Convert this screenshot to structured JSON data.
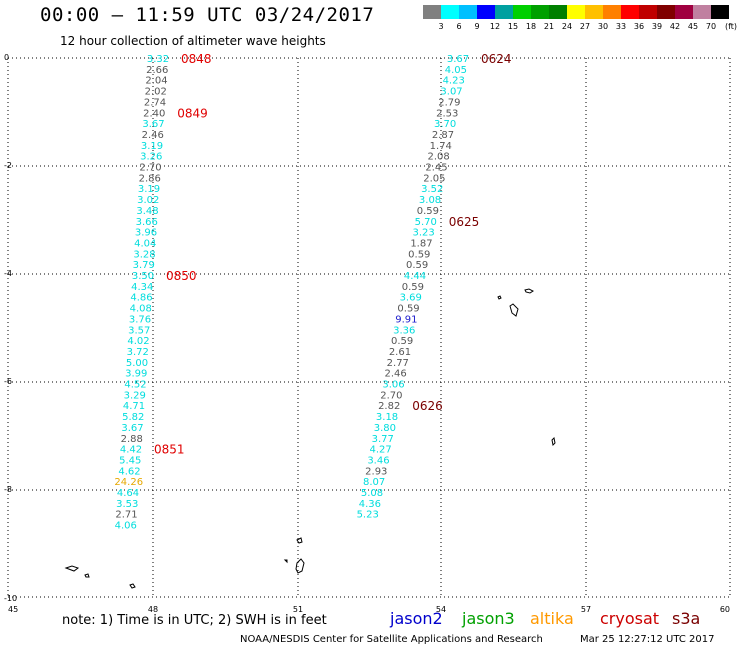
{
  "header": {
    "title": "00:00 — 11:59 UTC 03/24/2017",
    "subtitle": "12 hour collection of altimeter wave heights"
  },
  "colorbar": {
    "unit": "(ft)",
    "labels": [
      "3",
      "6",
      "9",
      "12",
      "15",
      "18",
      "21",
      "24",
      "27",
      "30",
      "33",
      "36",
      "39",
      "42",
      "45",
      "70"
    ],
    "colors": [
      "#808080",
      "#00ffff",
      "#00c0ff",
      "#0000ff",
      "#00a0a0",
      "#00d000",
      "#00a000",
      "#008000",
      "#ffff00",
      "#ffc000",
      "#ff8000",
      "#ff0000",
      "#c00000",
      "#800000",
      "#a00040",
      "#c080a0",
      "#000000"
    ]
  },
  "axes": {
    "x_ticks": [
      "45",
      "48",
      "51",
      "54",
      "57",
      "60"
    ],
    "y_ticks": [
      "0",
      "-2",
      "-4",
      "-6",
      "-8",
      "-10"
    ],
    "grid": true
  },
  "tracks": [
    {
      "name": "s3a-west",
      "times": [
        {
          "label": "0848",
          "row": 0
        },
        {
          "label": "0849",
          "row": 5
        },
        {
          "label": "0850",
          "row": 20
        },
        {
          "label": "0851",
          "row": 36
        }
      ],
      "points": [
        {
          "v": "3.32",
          "c": "#00dddd"
        },
        {
          "v": "2.66",
          "c": "#555555"
        },
        {
          "v": "2.04",
          "c": "#555555"
        },
        {
          "v": "2.02",
          "c": "#555555"
        },
        {
          "v": "2.74",
          "c": "#555555"
        },
        {
          "v": "2.40",
          "c": "#555555"
        },
        {
          "v": "3.67",
          "c": "#00dddd"
        },
        {
          "v": "2.46",
          "c": "#555555"
        },
        {
          "v": "3.19",
          "c": "#00dddd"
        },
        {
          "v": "3.26",
          "c": "#00dddd"
        },
        {
          "v": "2.70",
          "c": "#555555"
        },
        {
          "v": "2.86",
          "c": "#555555"
        },
        {
          "v": "3.19",
          "c": "#00dddd"
        },
        {
          "v": "3.02",
          "c": "#00dddd"
        },
        {
          "v": "3.48",
          "c": "#00dddd"
        },
        {
          "v": "3.66",
          "c": "#00dddd"
        },
        {
          "v": "3.96",
          "c": "#00dddd"
        },
        {
          "v": "4.04",
          "c": "#00dddd"
        },
        {
          "v": "3.28",
          "c": "#00dddd"
        },
        {
          "v": "3.79",
          "c": "#00dddd"
        },
        {
          "v": "3.50",
          "c": "#00dddd"
        },
        {
          "v": "4.34",
          "c": "#00dddd"
        },
        {
          "v": "4.86",
          "c": "#00dddd"
        },
        {
          "v": "4.08",
          "c": "#00dddd"
        },
        {
          "v": "3.76",
          "c": "#00dddd"
        },
        {
          "v": "3.57",
          "c": "#00dddd"
        },
        {
          "v": "4.02",
          "c": "#00dddd"
        },
        {
          "v": "3.72",
          "c": "#00dddd"
        },
        {
          "v": "5.00",
          "c": "#00dddd"
        },
        {
          "v": "3.99",
          "c": "#00dddd"
        },
        {
          "v": "4.52",
          "c": "#00dddd"
        },
        {
          "v": "3.29",
          "c": "#00dddd"
        },
        {
          "v": "4.71",
          "c": "#00dddd"
        },
        {
          "v": "5.82",
          "c": "#00dddd"
        },
        {
          "v": "3.67",
          "c": "#00dddd"
        },
        {
          "v": "2.88",
          "c": "#555555"
        },
        {
          "v": "4.42",
          "c": "#00dddd"
        },
        {
          "v": "5.45",
          "c": "#00dddd"
        },
        {
          "v": "4.62",
          "c": "#00dddd"
        },
        {
          "v": "24.26",
          "c": "#e6a800"
        },
        {
          "v": "4.64",
          "c": "#00dddd"
        },
        {
          "v": "3.53",
          "c": "#00dddd"
        },
        {
          "v": "2.71",
          "c": "#555555"
        },
        {
          "v": "4.06",
          "c": "#00dddd"
        }
      ]
    },
    {
      "name": "s3a-east",
      "times": [
        {
          "label": "0624",
          "row": 0
        },
        {
          "label": "0625",
          "row": 15
        },
        {
          "label": "0626",
          "row": 32
        }
      ],
      "points": [
        {
          "v": "3.67",
          "c": "#00dddd"
        },
        {
          "v": "4.05",
          "c": "#00dddd"
        },
        {
          "v": "4.23",
          "c": "#00dddd"
        },
        {
          "v": "3.07",
          "c": "#00dddd"
        },
        {
          "v": "2.79",
          "c": "#555555"
        },
        {
          "v": "2.53",
          "c": "#555555"
        },
        {
          "v": "3.70",
          "c": "#00dddd"
        },
        {
          "v": "2.87",
          "c": "#555555"
        },
        {
          "v": "1.74",
          "c": "#555555"
        },
        {
          "v": "2.08",
          "c": "#555555"
        },
        {
          "v": "2.45",
          "c": "#555555"
        },
        {
          "v": "2.05",
          "c": "#555555"
        },
        {
          "v": "3.52",
          "c": "#00dddd"
        },
        {
          "v": "3.08",
          "c": "#00dddd"
        },
        {
          "v": "0.59",
          "c": "#555555"
        },
        {
          "v": "5.70",
          "c": "#00dddd"
        },
        {
          "v": "3.23",
          "c": "#00dddd"
        },
        {
          "v": "1.87",
          "c": "#555555"
        },
        {
          "v": "0.59",
          "c": "#555555"
        },
        {
          "v": "0.59",
          "c": "#555555"
        },
        {
          "v": "4.44",
          "c": "#00dddd"
        },
        {
          "v": "0.59",
          "c": "#555555"
        },
        {
          "v": "3.69",
          "c": "#00dddd"
        },
        {
          "v": "0.59",
          "c": "#555555"
        },
        {
          "v": "9.91",
          "c": "#1a1acc"
        },
        {
          "v": "3.36",
          "c": "#00dddd"
        },
        {
          "v": "0.59",
          "c": "#555555"
        },
        {
          "v": "2.61",
          "c": "#555555"
        },
        {
          "v": "2.77",
          "c": "#555555"
        },
        {
          "v": "2.46",
          "c": "#555555"
        },
        {
          "v": "3.06",
          "c": "#00dddd"
        },
        {
          "v": "2.70",
          "c": "#555555"
        },
        {
          "v": "2.82",
          "c": "#555555"
        },
        {
          "v": "3.18",
          "c": "#00dddd"
        },
        {
          "v": "3.80",
          "c": "#00dddd"
        },
        {
          "v": "3.77",
          "c": "#00dddd"
        },
        {
          "v": "4.27",
          "c": "#00dddd"
        },
        {
          "v": "3.46",
          "c": "#00dddd"
        },
        {
          "v": "2.93",
          "c": "#555555"
        },
        {
          "v": "8.07",
          "c": "#00dddd"
        },
        {
          "v": "5.08",
          "c": "#00dddd"
        },
        {
          "v": "4.36",
          "c": "#00dddd"
        },
        {
          "v": "5.23",
          "c": "#00dddd"
        }
      ]
    }
  ],
  "time_colors": {
    "s3a-west": "#e00000",
    "s3a-east": "#7a0000"
  },
  "footer": {
    "note": "note: 1) Time is in UTC; 2) SWH is in feet",
    "satellites": [
      {
        "name": "jason2",
        "color": "#0000cc"
      },
      {
        "name": "jason3",
        "color": "#00a000"
      },
      {
        "name": "altika",
        "color": "#ff9900"
      },
      {
        "name": "cryosat",
        "color": "#cc0000"
      },
      {
        "name": "s3a",
        "color": "#7a0000"
      }
    ],
    "credit": "NOAA/NESDIS Center for Satellite Applications and Research",
    "timestamp": "Mar 25 12:27:12 UTC 2017"
  }
}
